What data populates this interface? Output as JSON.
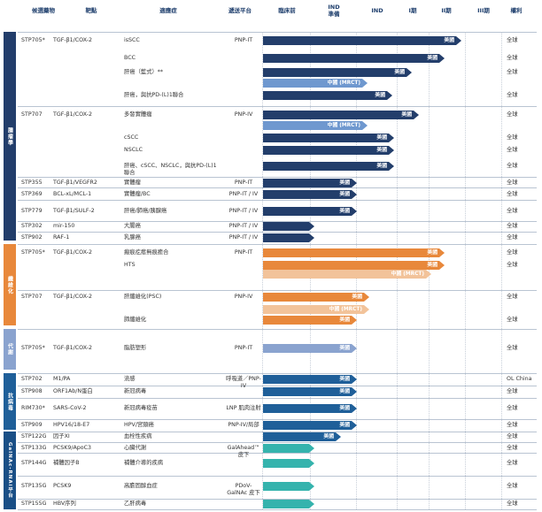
{
  "colors": {
    "immuno": "#233e6b",
    "immuno_light": "#6f98cf",
    "fibrosis": "#e8883b",
    "fibrosis_light": "#f2c39a",
    "metab": "#8aa3cf",
    "antiviral": "#1f5f99",
    "rnai": "#35b3ad",
    "header_text": "#1f3f6d"
  },
  "header": {
    "drug": "候選藥物",
    "target": "靶點",
    "indication": "適應症",
    "platform": "遞送平台",
    "preclinical": "臨床前",
    "ind_prep": "IND\n準備",
    "ind": "IND",
    "phase1": "I期",
    "phase2": "II期",
    "phase3": "III期",
    "rights": "權利"
  },
  "groups": {
    "immuno": "腫瘤學",
    "fibrosis": "纖維化",
    "metab": "代謝",
    "antiviral": "抗病毒",
    "rnai": "GalNAc-RNAi平台"
  },
  "rows": [
    {
      "drug": "STP705*",
      "target": "TGF-β1/COX-2",
      "indication": "isSCC",
      "platform": "PNP-IT",
      "bar": "美國",
      "rights": "全球"
    },
    {
      "drug": "",
      "target": "",
      "indication": "BCC",
      "platform": "",
      "bar": "美國",
      "rights": "全球"
    },
    {
      "drug": "",
      "target": "",
      "indication": "肝癌（藍式）**",
      "platform": "",
      "bar": "美國",
      "bar2": "中國 (MRCT)",
      "rights": "全球"
    },
    {
      "drug": "",
      "target": "",
      "indication": "肝癌，與抗PD-(L)1聯合",
      "platform": "",
      "bar": "美國",
      "rights": "全球"
    },
    {
      "drug": "STP707",
      "target": "TGF-β1/COX-2",
      "indication": "多發實體瘤",
      "platform": "PNP-IV",
      "bar": "美國",
      "bar2": "中國 (MRCT)",
      "rights": "全球"
    },
    {
      "drug": "",
      "target": "",
      "indication": "cSCC",
      "platform": "",
      "bar": "美國",
      "rights": "全球"
    },
    {
      "drug": "",
      "target": "",
      "indication": "NSCLC",
      "platform": "",
      "bar": "美國",
      "rights": "全球"
    },
    {
      "drug": "",
      "target": "",
      "indication": "肝癌、cSCC、NSCLC，與抗PD-(L)1聯合",
      "platform": "",
      "bar": "美國",
      "rights": "全球"
    },
    {
      "drug": "STP355",
      "target": "TGF-β1/VEGFR2",
      "indication": "實體瘤",
      "platform": "PNP-IT",
      "bar": "美國",
      "rights": "全球"
    },
    {
      "drug": "STP369",
      "target": "BCL-xL/MCL-1",
      "indication": "實體瘤/BC",
      "platform": "PNP-IT / IV",
      "bar": "美國",
      "rights": "全球"
    },
    {
      "drug": "STP779",
      "target": "TGF-β1/SULF-2",
      "indication": "肝癌/肺癌/胰腺癌",
      "platform": "PNP-IT / IV",
      "bar": "美國",
      "rights": "全球"
    },
    {
      "drug": "STP302",
      "target": "mir-150",
      "indication": "大腸癌",
      "platform": "PNP-IT / IV",
      "bar": "",
      "rights": "全球"
    },
    {
      "drug": "STP902",
      "target": "RAF-1",
      "indication": "乳腺癌",
      "platform": "PNP-IT / IV",
      "bar": "",
      "rights": "全球"
    },
    {
      "drug": "STP705*",
      "target": "TGF-β1/COX-2",
      "indication": "瘢痕疙瘩無痕癒合",
      "platform": "PNP-IT",
      "bar": "美國",
      "rights": "全球"
    },
    {
      "drug": "",
      "target": "",
      "indication": "HTS",
      "platform": "",
      "bar": "美國",
      "bar2": "中國 (MRCT)",
      "rights": "全球"
    },
    {
      "drug": "STP707",
      "target": "TGF-β1/COX-2",
      "indication": "肝纖維化(PSC)",
      "platform": "PNP-IV",
      "bar": "美國",
      "bar2": "中國 (MRCT)",
      "rights": "全球"
    },
    {
      "drug": "",
      "target": "",
      "indication": "肺纖維化",
      "platform": "",
      "bar": "美國",
      "rights": "全球"
    },
    {
      "drug": "STP705*",
      "target": "TGF-β1/COX-2",
      "indication": "脂肪塑形",
      "platform": "PNP-IT",
      "bar": "美國",
      "rights": "全球"
    },
    {
      "drug": "STP702",
      "target": "M1/PA",
      "indication": "流感",
      "platform": "呼吸道／PNP-IV",
      "bar": "美國",
      "rights": "OL China"
    },
    {
      "drug": "STP908",
      "target": "ORF1Ab/N蛋白",
      "indication": "新冠病毒",
      "platform": "",
      "bar": "美國",
      "rights": "全球"
    },
    {
      "drug": "RIM730*",
      "target": "SARS-CoV-2",
      "indication": "新冠病毒疫苗",
      "platform": "LNP 肌肉注射",
      "bar": "美國",
      "rights": "全球"
    },
    {
      "drug": "STP909",
      "target": "HPV16/18-E7",
      "indication": "HPV/宮頸癌",
      "platform": "PNP-IV/局部",
      "bar": "美國",
      "rights": "全球"
    },
    {
      "drug": "STP122G",
      "target": "因子XI",
      "indication": "血栓性疾病",
      "platform": "",
      "bar": "美國",
      "rights": "全球"
    },
    {
      "drug": "STP133G",
      "target": "PCSK9/ApoC3",
      "indication": "心臟代謝",
      "platform": "GalAhead™ 皮下",
      "bar": "",
      "rights": "全球"
    },
    {
      "drug": "STP144G",
      "target": "補體因子B",
      "indication": "補體介導的疾病",
      "platform": "",
      "bar": "",
      "rights": "全球"
    },
    {
      "drug": "STP135G",
      "target": "PCSK9",
      "indication": "高膽固醇血症",
      "platform": "PDoV-GalNAc 皮下",
      "bar": "",
      "rights": "全球"
    },
    {
      "drug": "STP155G",
      "target": "HBV序列",
      "indication": "乙肝病毒",
      "platform": "",
      "bar": "",
      "rights": "全球"
    }
  ]
}
